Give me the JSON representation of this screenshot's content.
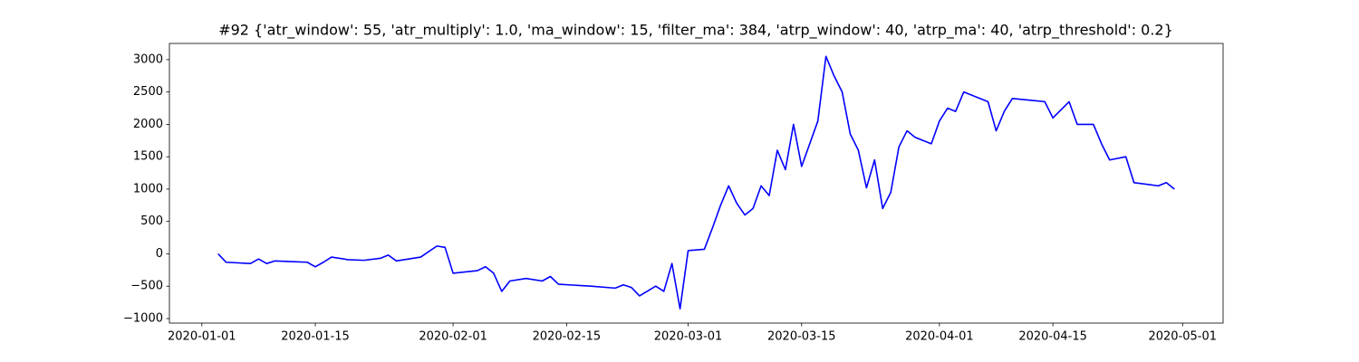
{
  "chart_data": {
    "type": "line",
    "title": "#92 {'atr_window': 55, 'atr_multiply': 1.0, 'ma_window': 15, 'filter_ma': 384, 'atrp_window': 40, 'atrp_ma': 40, 'atrp_threshold': 0.2}",
    "color": "#0000ff",
    "x": [
      "2020-01-03",
      "2020-01-04",
      "2020-01-07",
      "2020-01-08",
      "2020-01-09",
      "2020-01-10",
      "2020-01-12",
      "2020-01-14",
      "2020-01-15",
      "2020-01-16",
      "2020-01-17",
      "2020-01-19",
      "2020-01-21",
      "2020-01-23",
      "2020-01-24",
      "2020-01-25",
      "2020-01-28",
      "2020-01-30",
      "2020-01-31",
      "2020-02-01",
      "2020-02-04",
      "2020-02-05",
      "2020-02-06",
      "2020-02-07",
      "2020-02-08",
      "2020-02-10",
      "2020-02-12",
      "2020-02-13",
      "2020-02-14",
      "2020-02-18",
      "2020-02-21",
      "2020-02-22",
      "2020-02-23",
      "2020-02-24",
      "2020-02-26",
      "2020-02-27",
      "2020-02-28",
      "2020-02-29",
      "2020-03-01",
      "2020-03-03",
      "2020-03-04",
      "2020-03-05",
      "2020-03-06",
      "2020-03-07",
      "2020-03-08",
      "2020-03-09",
      "2020-03-10",
      "2020-03-11",
      "2020-03-12",
      "2020-03-13",
      "2020-03-14",
      "2020-03-15",
      "2020-03-17",
      "2020-03-18",
      "2020-03-19",
      "2020-03-20",
      "2020-03-21",
      "2020-03-22",
      "2020-03-23",
      "2020-03-24",
      "2020-03-25",
      "2020-03-26",
      "2020-03-27",
      "2020-03-28",
      "2020-03-29",
      "2020-03-31",
      "2020-04-01",
      "2020-04-02",
      "2020-04-03",
      "2020-04-04",
      "2020-04-07",
      "2020-04-08",
      "2020-04-09",
      "2020-04-10",
      "2020-04-14",
      "2020-04-15",
      "2020-04-17",
      "2020-04-18",
      "2020-04-20",
      "2020-04-21",
      "2020-04-22",
      "2020-04-24",
      "2020-04-25",
      "2020-04-28",
      "2020-04-29",
      "2020-04-30"
    ],
    "values": [
      0,
      -130,
      -150,
      -80,
      -150,
      -110,
      -120,
      -130,
      -200,
      -130,
      -50,
      -90,
      -100,
      -70,
      -20,
      -110,
      -50,
      120,
      100,
      -300,
      -260,
      -200,
      -300,
      -580,
      -420,
      -380,
      -420,
      -350,
      -470,
      -500,
      -530,
      -480,
      -520,
      -650,
      -500,
      -580,
      -150,
      -850,
      50,
      70,
      400,
      750,
      1050,
      780,
      600,
      700,
      1050,
      900,
      1600,
      1300,
      2000,
      1350,
      2050,
      3050,
      2750,
      2500,
      1850,
      1600,
      1020,
      1450,
      700,
      950,
      1650,
      1900,
      1800,
      1700,
      2050,
      2250,
      2200,
      2500,
      2350,
      1900,
      2200,
      2400,
      2350,
      2100,
      2350,
      2000,
      2000,
      1700,
      1450,
      1500,
      1100,
      1050,
      1100,
      1000
    ],
    "xlim": [
      "2019-12-28",
      "2020-05-06"
    ],
    "xticks": [
      "2020-01-01",
      "2020-01-15",
      "2020-02-01",
      "2020-02-15",
      "2020-03-01",
      "2020-03-15",
      "2020-04-01",
      "2020-04-15",
      "2020-05-01"
    ],
    "ylim": [
      -1070,
      3250
    ],
    "yticks": [
      {
        "value": -1000,
        "label": "−1000"
      },
      {
        "value": -500,
        "label": "−500"
      },
      0,
      500,
      1000,
      1500,
      2000,
      2500,
      3000
    ],
    "grid": false
  }
}
